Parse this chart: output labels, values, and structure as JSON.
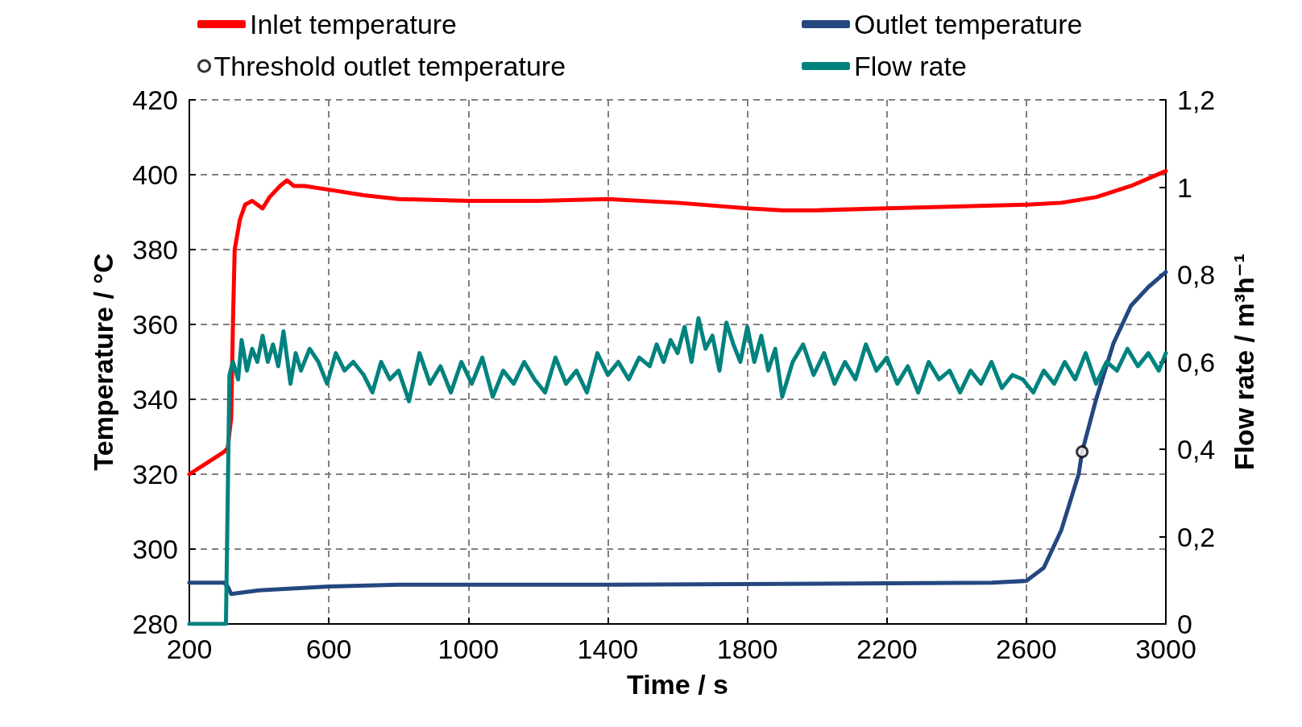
{
  "chart_data": {
    "type": "line",
    "xlabel": "Time / s",
    "ylabel": "Temperature / °C",
    "y2label": "Flow rate / m³h⁻¹",
    "xlim": [
      200,
      3000
    ],
    "xticks": [
      200,
      600,
      1000,
      1400,
      1800,
      2200,
      2600,
      3000
    ],
    "ylim": [
      280,
      420
    ],
    "yticks": [
      280,
      300,
      320,
      340,
      360,
      380,
      400,
      420
    ],
    "y2lim": [
      0,
      1.2
    ],
    "y2ticks": [
      {
        "value": 0,
        "label": "0"
      },
      {
        "value": 0.2,
        "label": "0,2"
      },
      {
        "value": 0.4,
        "label": "0,4"
      },
      {
        "value": 0.6,
        "label": "0,6"
      },
      {
        "value": 0.8,
        "label": "0,8"
      },
      {
        "value": 1,
        "label": "1"
      },
      {
        "value": 1.2,
        "label": "1,2"
      }
    ],
    "grid": true,
    "legend": "top",
    "marker": "none",
    "line_style": "solid",
    "series": [
      {
        "name": "Inlet temperature",
        "color": "#ff0000",
        "x": [
          200,
          250,
          300,
          310,
          320,
          325,
          330,
          345,
          360,
          380,
          410,
          430,
          460,
          480,
          500,
          530,
          600,
          700,
          800,
          1000,
          1200,
          1400,
          1600,
          1800,
          1900,
          2000,
          2200,
          2400,
          2600,
          2700,
          2800,
          2900,
          3000
        ],
        "values": [
          320,
          323,
          326,
          327,
          335,
          360,
          380,
          388,
          392,
          393,
          391,
          394,
          397,
          398.5,
          397,
          397,
          396,
          394.5,
          393.5,
          393,
          393,
          393.5,
          392.5,
          391,
          390.5,
          390.5,
          391,
          391.5,
          392,
          392.5,
          394,
          397,
          401
        ]
      },
      {
        "name": "Outlet temperature",
        "color": "#24477f",
        "x": [
          200,
          300,
          310,
          320,
          400,
          600,
          800,
          1400,
          2500,
          2600,
          2650,
          2700,
          2750,
          2760,
          2800,
          2850,
          2900,
          2950,
          3000
        ],
        "values": [
          291,
          291,
          290,
          288,
          289,
          290,
          290.5,
          290.5,
          291,
          291.5,
          295,
          305,
          320,
          326,
          340,
          355,
          365,
          370,
          374
        ]
      },
      {
        "name": "Threshold outlet temperature",
        "type": "scatter",
        "marker": "circle",
        "color": "#000000",
        "x": [
          2760
        ],
        "values": [
          326
        ]
      },
      {
        "name": "Flow rate",
        "color": "#00827f",
        "axis": "y2",
        "x": [
          200,
          305,
          315,
          325,
          340,
          350,
          365,
          380,
          395,
          410,
          425,
          440,
          455,
          470,
          490,
          505,
          520,
          545,
          570,
          595,
          620,
          645,
          670,
          700,
          725,
          750,
          775,
          800,
          830,
          860,
          890,
          920,
          950,
          980,
          1010,
          1040,
          1070,
          1100,
          1130,
          1160,
          1190,
          1220,
          1250,
          1280,
          1310,
          1340,
          1370,
          1400,
          1430,
          1460,
          1490,
          1520,
          1540,
          1560,
          1580,
          1600,
          1620,
          1640,
          1660,
          1680,
          1700,
          1720,
          1740,
          1760,
          1780,
          1800,
          1820,
          1840,
          1860,
          1880,
          1900,
          1930,
          1960,
          1990,
          2020,
          2050,
          2080,
          2110,
          2140,
          2170,
          2200,
          2230,
          2260,
          2290,
          2320,
          2350,
          2380,
          2410,
          2440,
          2470,
          2500,
          2530,
          2560,
          2590,
          2620,
          2650,
          2680,
          2710,
          2740,
          2770,
          2800,
          2830,
          2860,
          2890,
          2920,
          2950,
          2980,
          3000
        ],
        "values": [
          0,
          0,
          0.57,
          0.6,
          0.56,
          0.65,
          0.58,
          0.63,
          0.6,
          0.66,
          0.6,
          0.64,
          0.59,
          0.67,
          0.55,
          0.62,
          0.58,
          0.63,
          0.6,
          0.55,
          0.62,
          0.58,
          0.6,
          0.57,
          0.53,
          0.6,
          0.56,
          0.58,
          0.51,
          0.62,
          0.55,
          0.59,
          0.53,
          0.6,
          0.55,
          0.61,
          0.52,
          0.58,
          0.55,
          0.6,
          0.56,
          0.53,
          0.61,
          0.55,
          0.58,
          0.53,
          0.62,
          0.57,
          0.6,
          0.56,
          0.61,
          0.59,
          0.64,
          0.6,
          0.65,
          0.62,
          0.68,
          0.6,
          0.7,
          0.63,
          0.66,
          0.58,
          0.69,
          0.64,
          0.6,
          0.68,
          0.6,
          0.66,
          0.58,
          0.63,
          0.52,
          0.6,
          0.64,
          0.57,
          0.62,
          0.55,
          0.6,
          0.56,
          0.64,
          0.58,
          0.61,
          0.55,
          0.59,
          0.53,
          0.6,
          0.56,
          0.58,
          0.53,
          0.58,
          0.55,
          0.6,
          0.54,
          0.57,
          0.56,
          0.53,
          0.58,
          0.55,
          0.6,
          0.56,
          0.62,
          0.55,
          0.6,
          0.58,
          0.63,
          0.59,
          0.62,
          0.58,
          0.62
        ]
      }
    ]
  }
}
